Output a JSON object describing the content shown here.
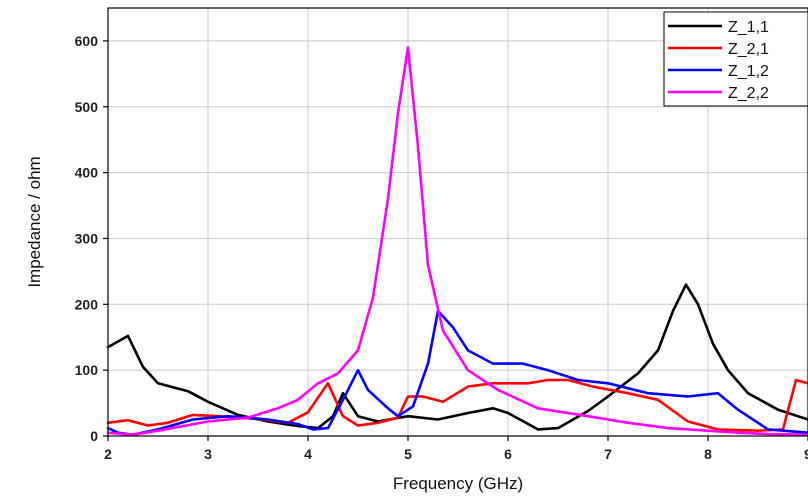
{
  "chart_data": {
    "type": "line",
    "xlabel": "Frequency (GHz)",
    "ylabel": "Impedance / ohm",
    "xlim": [
      2,
      9
    ],
    "ylim": [
      0,
      650
    ],
    "xticks": [
      2,
      3,
      4,
      5,
      6,
      7,
      8,
      9
    ],
    "yticks": [
      0,
      100,
      200,
      300,
      400,
      500,
      600
    ],
    "grid": true,
    "legend_position": "top-right",
    "series": [
      {
        "name": "Z_1,1",
        "color": "#000000",
        "x": [
          2.0,
          2.2,
          2.35,
          2.5,
          2.8,
          3.0,
          3.3,
          3.6,
          3.9,
          4.1,
          4.25,
          4.35,
          4.5,
          4.7,
          5.0,
          5.3,
          5.6,
          5.85,
          6.0,
          6.3,
          6.5,
          6.8,
          7.0,
          7.3,
          7.5,
          7.65,
          7.78,
          7.9,
          8.05,
          8.2,
          8.4,
          8.7,
          9.0
        ],
        "values": [
          135,
          152,
          105,
          80,
          68,
          52,
          32,
          22,
          15,
          12,
          30,
          65,
          30,
          22,
          30,
          25,
          35,
          42,
          35,
          10,
          12,
          38,
          60,
          95,
          130,
          190,
          230,
          200,
          140,
          100,
          65,
          40,
          25
        ]
      },
      {
        "name": "Z_2,1",
        "color": "#ff0000",
        "x": [
          2.0,
          2.2,
          2.4,
          2.6,
          2.85,
          3.1,
          3.5,
          3.8,
          4.0,
          4.2,
          4.35,
          4.5,
          4.7,
          4.9,
          5.0,
          5.15,
          5.35,
          5.6,
          5.85,
          6.2,
          6.4,
          6.6,
          6.85,
          7.2,
          7.5,
          7.8,
          8.1,
          8.5,
          8.75,
          8.88,
          9.0
        ],
        "values": [
          20,
          24,
          16,
          20,
          32,
          30,
          26,
          20,
          36,
          80,
          30,
          16,
          20,
          28,
          60,
          60,
          52,
          75,
          80,
          80,
          85,
          85,
          75,
          65,
          55,
          22,
          10,
          8,
          10,
          85,
          80
        ]
      },
      {
        "name": "Z_1,2",
        "color": "#0000ff",
        "x": [
          2.0,
          2.1,
          2.25,
          2.5,
          2.85,
          3.2,
          3.6,
          3.9,
          4.05,
          4.2,
          4.35,
          4.5,
          4.6,
          4.8,
          4.9,
          5.05,
          5.2,
          5.3,
          5.45,
          5.6,
          5.85,
          6.15,
          6.4,
          6.7,
          7.0,
          7.4,
          7.8,
          8.1,
          8.3,
          8.6,
          9.0
        ],
        "values": [
          12,
          5,
          2,
          10,
          25,
          30,
          25,
          18,
          10,
          12,
          55,
          100,
          70,
          42,
          30,
          45,
          110,
          190,
          165,
          130,
          110,
          110,
          100,
          85,
          80,
          65,
          60,
          65,
          40,
          10,
          5
        ]
      },
      {
        "name": "Z_2,2",
        "color": "#ff00ff",
        "x": [
          2.0,
          2.25,
          2.5,
          3.0,
          3.4,
          3.7,
          3.9,
          4.1,
          4.3,
          4.5,
          4.65,
          4.8,
          4.9,
          5.0,
          5.1,
          5.2,
          5.35,
          5.6,
          5.9,
          6.3,
          6.8,
          7.2,
          7.6,
          8.0,
          8.3,
          8.6,
          9.0
        ],
        "values": [
          5,
          2,
          8,
          22,
          28,
          42,
          55,
          80,
          95,
          130,
          210,
          360,
          490,
          590,
          440,
          260,
          160,
          100,
          70,
          42,
          30,
          20,
          12,
          8,
          5,
          3,
          2
        ]
      }
    ]
  }
}
